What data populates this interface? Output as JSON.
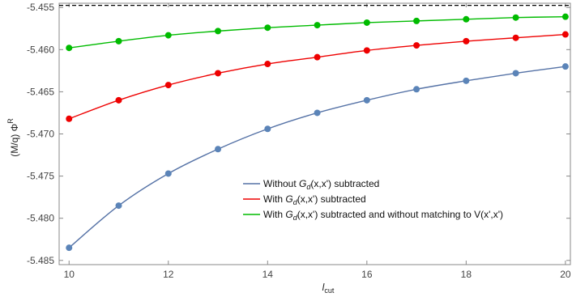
{
  "chart_data": {
    "type": "line",
    "title": "",
    "xlabel": "l",
    "xlabel_sub": "cut",
    "ylabel": "(M/q) Φ",
    "ylabel_sup": "R",
    "xlim": [
      9.8,
      20.1
    ],
    "ylim": [
      -5.4855,
      -5.4545
    ],
    "xticks": [
      10,
      12,
      14,
      16,
      18,
      20
    ],
    "xtick_labels": [
      "10",
      "12",
      "14",
      "16",
      "18",
      "20"
    ],
    "yticks": [
      -5.485,
      -5.48,
      -5.475,
      -5.47,
      -5.465,
      -5.46,
      -5.455
    ],
    "ytick_labels": [
      "-5.485",
      "-5.480",
      "-5.475",
      "-5.470",
      "-5.465",
      "-5.460",
      "-5.455"
    ],
    "reference_line": {
      "y": -5.45475,
      "style": "dashed",
      "color": "#000000"
    },
    "legend": [
      {
        "prefix": "Without ",
        "symbol": "G",
        "symbol_sub": "d",
        "suffix": "(x,x') subtracted"
      },
      {
        "prefix": "With ",
        "symbol": "G",
        "symbol_sub": "d",
        "suffix": "(x,x') subtracted"
      },
      {
        "prefix": "With ",
        "symbol": "G",
        "symbol_sub": "d",
        "suffix": "(x,x') subtracted and without matching to V(x',x')"
      }
    ],
    "x": [
      10,
      11,
      12,
      13,
      14,
      15,
      16,
      17,
      18,
      19,
      20
    ],
    "series": [
      {
        "line_color": "#5572a6",
        "marker_color": "#5b84b8",
        "values": [
          -5.4835,
          -5.4785,
          -5.4747,
          -5.4718,
          -5.4694,
          -5.4675,
          -5.466,
          -5.4647,
          -5.4637,
          -5.4628,
          -5.462
        ]
      },
      {
        "line_color": "#ee0000",
        "marker_color": "#ee0000",
        "values": [
          -5.4682,
          -5.466,
          -5.4642,
          -5.4628,
          -5.4617,
          -5.4609,
          -5.4601,
          -5.4595,
          -5.459,
          -5.4586,
          -5.4582
        ]
      },
      {
        "line_color": "#00bb00",
        "marker_color": "#00bb00",
        "values": [
          -5.4598,
          -5.459,
          -5.4583,
          -5.4578,
          -5.4574,
          -5.4571,
          -5.4568,
          -5.4566,
          -5.4564,
          -5.4562,
          -5.4561
        ]
      }
    ]
  }
}
